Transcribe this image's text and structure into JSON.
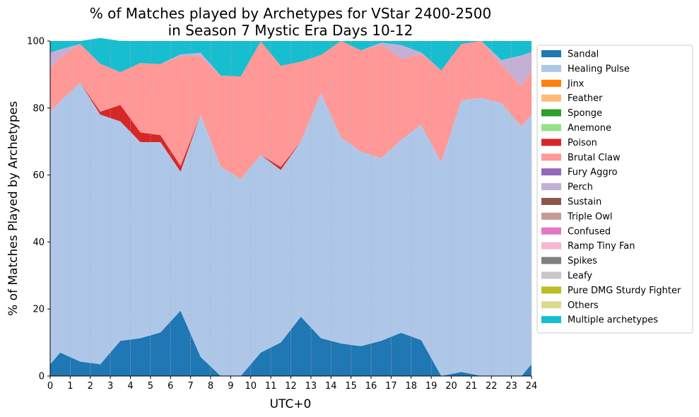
{
  "chart_data": {
    "type": "area",
    "stacked": true,
    "title_line1": "% of Matches played by Archetypes for VStar 2400-2500",
    "title_line2": "in Season 7 Mystic Era Days 10-12",
    "xlabel": "UTC+0",
    "ylabel": "% of Matches Played by Archetypes",
    "xlim": [
      0,
      24
    ],
    "ylim": [
      0,
      100
    ],
    "x_ticks": [
      0,
      1,
      2,
      3,
      4,
      5,
      6,
      7,
      8,
      9,
      10,
      11,
      12,
      13,
      14,
      15,
      16,
      17,
      18,
      19,
      20,
      21,
      22,
      23,
      24
    ],
    "y_ticks": [
      0,
      20,
      40,
      60,
      80,
      100
    ],
    "grid": "vertical dotted",
    "legend_position": "right, outside",
    "x": [
      0,
      0.5,
      1.5,
      2.5,
      3.5,
      4.5,
      5.5,
      6.5,
      7.5,
      8.5,
      9.5,
      10.5,
      11.5,
      12.5,
      13.5,
      14.5,
      15.5,
      16.5,
      17.5,
      18.5,
      19.5,
      20.5,
      21.5,
      22.5,
      23.5,
      24
    ],
    "series": [
      {
        "name": "Sandal",
        "color": "#1f77b4",
        "values": [
          3.5,
          7,
          4.3,
          3.5,
          10.5,
          11.3,
          13,
          19.5,
          5.7,
          0,
          0,
          7,
          10,
          17.7,
          11.3,
          9.7,
          8.9,
          10.5,
          12.9,
          10.7,
          0,
          1.2,
          0,
          0,
          0,
          3.5
        ]
      },
      {
        "name": "Healing Pulse",
        "color": "#aec7e8",
        "values": [
          75.5,
          75,
          83.2,
          74.5,
          65.5,
          58.5,
          56.8,
          41.5,
          72.3,
          62.5,
          58.8,
          59,
          51.5,
          52.3,
          73.2,
          61.5,
          58.1,
          54.5,
          57.6,
          64.3,
          63.8,
          81.1,
          83,
          81.5,
          74.5,
          74.5
        ]
      },
      {
        "name": "Jinx",
        "color": "#ff7f0e",
        "values": [
          0,
          0,
          0,
          0,
          0,
          0,
          0,
          0,
          0,
          0,
          0,
          0,
          0,
          0,
          0,
          0,
          0,
          0,
          0,
          0,
          0,
          0,
          0,
          0,
          0,
          0
        ]
      },
      {
        "name": "Feather",
        "color": "#ffbb78",
        "values": [
          0,
          0,
          0,
          0,
          0,
          0,
          0,
          0,
          0,
          0,
          0,
          0,
          0,
          0,
          0,
          0,
          0,
          0,
          0,
          0,
          0,
          0,
          0,
          0,
          0,
          0
        ]
      },
      {
        "name": "Sponge",
        "color": "#2ca02c",
        "values": [
          0,
          0,
          0,
          0,
          0,
          0,
          0,
          0,
          0,
          0,
          0,
          0,
          0,
          0,
          0,
          0,
          0,
          0,
          0,
          0,
          0,
          0,
          0,
          0,
          0,
          0
        ]
      },
      {
        "name": "Anemone",
        "color": "#98df8a",
        "values": [
          0,
          0,
          0,
          0,
          0,
          0,
          0,
          0,
          0,
          0,
          0,
          0,
          0,
          0,
          0,
          0,
          0,
          0,
          0,
          0,
          0,
          0,
          0,
          0,
          0,
          0
        ]
      },
      {
        "name": "Poison",
        "color": "#d62728",
        "values": [
          0,
          0,
          0,
          0.9,
          4.9,
          2.9,
          2.1,
          1.7,
          0,
          0,
          0,
          0,
          0.9,
          0,
          0,
          0,
          0,
          0,
          0,
          0,
          0,
          0,
          0,
          0,
          0,
          0
        ]
      },
      {
        "name": "Brutal Claw",
        "color": "#ff9896",
        "values": [
          12.9,
          13.1,
          11.6,
          14.3,
          9.8,
          20.7,
          21.2,
          32.8,
          17.5,
          27.2,
          30.6,
          33.9,
          30.2,
          23.8,
          11.3,
          28.8,
          30.2,
          33.9,
          24.2,
          21.1,
          27.4,
          16.8,
          17,
          11.3,
          12,
          13
        ]
      },
      {
        "name": "Fury Aggro",
        "color": "#9467bd",
        "values": [
          0,
          0,
          0,
          0,
          0,
          0,
          0,
          0,
          0,
          0,
          0,
          0,
          0,
          0,
          0,
          0,
          0,
          0,
          0,
          0,
          0,
          0,
          0,
          0,
          0,
          0
        ]
      },
      {
        "name": "Perch",
        "color": "#c5b0d5",
        "values": [
          4.6,
          2.4,
          0,
          0,
          0,
          0,
          0,
          0.5,
          1,
          0,
          0,
          0,
          0,
          0,
          0,
          0,
          0,
          0.6,
          4.1,
          0.5,
          0,
          0,
          0,
          1.5,
          9.2,
          5.7
        ]
      },
      {
        "name": "Sustain",
        "color": "#8c564b",
        "values": [
          0,
          0,
          0,
          0,
          0,
          0,
          0,
          0,
          0,
          0,
          0,
          0,
          0,
          0,
          0,
          0,
          0,
          0,
          0,
          0,
          0,
          0,
          0,
          0,
          0,
          0
        ]
      },
      {
        "name": "Triple Owl",
        "color": "#c49c94",
        "values": [
          0,
          0,
          0,
          0,
          0,
          0,
          0,
          0,
          0,
          0,
          0,
          0,
          0,
          0,
          0,
          0,
          0,
          0,
          0,
          0,
          0,
          0,
          0,
          0,
          0,
          0
        ]
      },
      {
        "name": "Confused",
        "color": "#e377c2",
        "values": [
          0,
          0,
          0,
          0,
          0,
          0,
          0,
          0,
          0,
          0,
          0,
          0,
          0,
          0,
          0,
          0,
          0,
          0,
          0,
          0,
          0,
          0,
          0,
          0,
          0,
          0
        ]
      },
      {
        "name": "Ramp Tiny Fan",
        "color": "#f7b6d2",
        "values": [
          0,
          0,
          0,
          0,
          0,
          0,
          0,
          0,
          0,
          0,
          0,
          0,
          0,
          0,
          0,
          0,
          0,
          0,
          0,
          0,
          0,
          0,
          0,
          0,
          0,
          0
        ]
      },
      {
        "name": "Spikes",
        "color": "#7f7f7f",
        "values": [
          0,
          0,
          0,
          0,
          0,
          0,
          0,
          0,
          0,
          0,
          0,
          0,
          0,
          0,
          0,
          0,
          0,
          0,
          0,
          0,
          0,
          0,
          0,
          0,
          0,
          0
        ]
      },
      {
        "name": "Leafy",
        "color": "#c7c7c7",
        "values": [
          0,
          0,
          0,
          0,
          0,
          0,
          0,
          0,
          0,
          0,
          0,
          0,
          0,
          0,
          0,
          0,
          0,
          0,
          0,
          0,
          0,
          0,
          0,
          0,
          0,
          0
        ]
      },
      {
        "name": "Pure DMG Sturdy Fighter",
        "color": "#bcbd22",
        "values": [
          0,
          0,
          0,
          0,
          0,
          0,
          0,
          0,
          0,
          0,
          0,
          0,
          0,
          0,
          0,
          0,
          0,
          0,
          0,
          0,
          0,
          0,
          0,
          0,
          0,
          0
        ]
      },
      {
        "name": "Others",
        "color": "#dbdb8d",
        "values": [
          0,
          0,
          0,
          0,
          0,
          0,
          0,
          0,
          0,
          0,
          0,
          0,
          0,
          0,
          0,
          0,
          0,
          0,
          0,
          0,
          0,
          0,
          0,
          0,
          0,
          0
        ]
      },
      {
        "name": "Multiple archetypes",
        "color": "#17becf",
        "values": [
          3.5,
          2.5,
          0.9,
          7.7,
          9.3,
          6.6,
          6.9,
          4,
          3.5,
          10.3,
          10.6,
          0.1,
          7.4,
          6.2,
          4.2,
          0,
          2.8,
          0.5,
          1.2,
          3.4,
          8.8,
          0.9,
          0,
          5.7,
          4.3,
          3.3
        ]
      }
    ]
  }
}
